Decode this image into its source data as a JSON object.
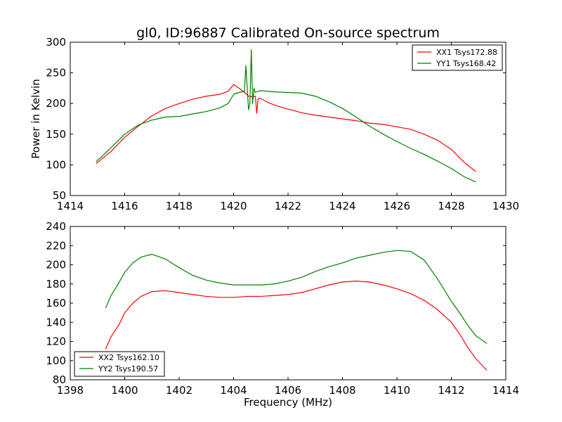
{
  "figure_title": "gl0, ID:96887 Calibrated On-source spectrum",
  "colors": {
    "red": "#ff0000",
    "green": "#007f00",
    "frame": "#000000",
    "background": "#ffffff"
  },
  "chart_data": [
    {
      "type": "line",
      "title": "gl0, ID:96887 Calibrated On-source spectrum",
      "xlabel": "",
      "ylabel": "Power in Kelvin",
      "xlim": [
        1414,
        1430
      ],
      "ylim": [
        50,
        300
      ],
      "xticks": [
        1414,
        1416,
        1418,
        1420,
        1422,
        1424,
        1426,
        1428,
        1430
      ],
      "yticks": [
        50,
        100,
        150,
        200,
        250,
        300
      ],
      "grid": false,
      "legend_position": "top-right",
      "series": [
        {
          "name": "XX1 Tsys172.88",
          "color": "#ff0000",
          "x": [
            1414.95,
            1415.5,
            1416.0,
            1416.5,
            1417.0,
            1417.5,
            1418.0,
            1418.5,
            1419.0,
            1419.5,
            1419.8,
            1420.0,
            1420.2,
            1420.4,
            1420.55,
            1420.65,
            1420.8,
            1420.85,
            1420.9,
            1421.0,
            1421.3,
            1421.6,
            1422.0,
            1422.5,
            1423.0,
            1423.5,
            1424.0,
            1424.5,
            1425.0,
            1425.5,
            1426.0,
            1426.5,
            1427.0,
            1427.5,
            1428.0,
            1428.5,
            1428.9
          ],
          "y": [
            102,
            122,
            145,
            163,
            180,
            192,
            200,
            207,
            212,
            215,
            220,
            231,
            225,
            218,
            212,
            211,
            212,
            184,
            208,
            208,
            201,
            196,
            191,
            185,
            181,
            178,
            175,
            172,
            168,
            166,
            162,
            158,
            150,
            140,
            125,
            103,
            89
          ]
        },
        {
          "name": "YY1 Tsys168.42",
          "color": "#007f00",
          "x": [
            1414.95,
            1415.5,
            1416.0,
            1416.5,
            1417.0,
            1417.5,
            1418.0,
            1418.5,
            1419.0,
            1419.5,
            1419.8,
            1420.0,
            1420.2,
            1420.4,
            1420.45,
            1420.55,
            1420.6,
            1420.65,
            1420.7,
            1420.75,
            1420.8,
            1420.9,
            1421.0,
            1421.5,
            1422.0,
            1422.5,
            1423.0,
            1423.5,
            1424.0,
            1424.5,
            1425.0,
            1425.5,
            1426.0,
            1426.5,
            1427.0,
            1427.5,
            1428.0,
            1428.5,
            1428.9
          ],
          "y": [
            105,
            128,
            150,
            165,
            173,
            178,
            179,
            183,
            187,
            193,
            200,
            215,
            218,
            220,
            262,
            190,
            200,
            288,
            200,
            225,
            218,
            220,
            221,
            219,
            218,
            217,
            212,
            203,
            192,
            178,
            163,
            150,
            138,
            127,
            117,
            106,
            94,
            80,
            72
          ]
        }
      ]
    },
    {
      "type": "line",
      "title": "",
      "xlabel": "Frequency (MHz)",
      "ylabel": "",
      "xlim": [
        1398,
        1414
      ],
      "ylim": [
        80,
        240
      ],
      "xticks": [
        1398,
        1400,
        1402,
        1404,
        1406,
        1408,
        1410,
        1412,
        1414
      ],
      "yticks": [
        80,
        100,
        120,
        140,
        160,
        180,
        200,
        220,
        240
      ],
      "grid": false,
      "legend_position": "bottom-left",
      "series": [
        {
          "name": "XX2 Tsys162.10",
          "color": "#ff0000",
          "x": [
            1399.3,
            1399.5,
            1399.8,
            1400.0,
            1400.3,
            1400.6,
            1401.0,
            1401.5,
            1402.0,
            1402.5,
            1403.0,
            1403.5,
            1404.0,
            1404.5,
            1405.0,
            1405.5,
            1406.0,
            1406.5,
            1407.0,
            1407.5,
            1408.0,
            1408.5,
            1409.0,
            1409.5,
            1410.0,
            1410.5,
            1411.0,
            1411.5,
            1412.0,
            1412.3,
            1412.6,
            1412.9,
            1413.3
          ],
          "y": [
            112,
            125,
            138,
            150,
            160,
            167,
            172,
            173,
            171,
            169,
            167,
            166,
            166,
            167,
            167,
            168,
            169,
            171,
            175,
            179,
            182,
            183,
            182,
            179,
            175,
            170,
            163,
            153,
            140,
            128,
            114,
            102,
            90
          ]
        },
        {
          "name": "YY2 Tsys190.57",
          "color": "#007f00",
          "x": [
            1399.3,
            1399.5,
            1399.8,
            1400.0,
            1400.3,
            1400.6,
            1401.0,
            1401.5,
            1402.0,
            1402.5,
            1403.0,
            1403.5,
            1404.0,
            1404.5,
            1405.0,
            1405.5,
            1406.0,
            1406.5,
            1407.0,
            1407.5,
            1408.0,
            1408.5,
            1409.0,
            1409.5,
            1410.0,
            1410.5,
            1411.0,
            1411.5,
            1412.0,
            1412.3,
            1412.6,
            1412.9,
            1413.3
          ],
          "y": [
            155,
            168,
            182,
            192,
            202,
            208,
            211,
            206,
            197,
            189,
            184,
            181,
            179,
            179,
            179,
            180,
            183,
            187,
            193,
            198,
            202,
            207,
            210,
            213,
            215,
            214,
            205,
            185,
            162,
            150,
            137,
            126,
            118
          ]
        }
      ]
    }
  ]
}
